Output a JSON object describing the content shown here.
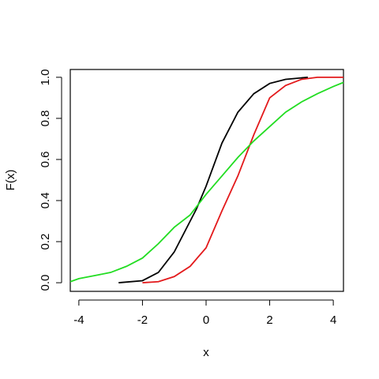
{
  "chart_data": {
    "type": "line",
    "x_label": "x",
    "y_label": "F(x)",
    "xlim": [
      -4.27,
      4.32
    ],
    "ylim": [
      -0.042,
      1.038
    ],
    "xticks": [
      -4,
      -2,
      0,
      2,
      4
    ],
    "yticks": [
      {
        "value": 0,
        "label": "0.0"
      },
      {
        "value": 0.2,
        "label": "0.2"
      },
      {
        "value": 0.4,
        "label": "0.4"
      },
      {
        "value": 0.6,
        "label": "0.6"
      },
      {
        "value": 0.8,
        "label": "0.8"
      },
      {
        "value": 1,
        "label": "1.0"
      }
    ],
    "series": [
      {
        "color": "#000000",
        "x": [
          -2.75,
          -2,
          -1.5,
          -1,
          -0.5,
          -0.3,
          0,
          0.5,
          1,
          1.5,
          2,
          2.5,
          3.2
        ],
        "values": [
          0,
          0.01,
          0.05,
          0.15,
          0.3,
          0.36,
          0.47,
          0.68,
          0.83,
          0.92,
          0.97,
          0.99,
          1
        ]
      },
      {
        "color": "#e31a1c",
        "x": [
          -2,
          -1.5,
          -1,
          -0.5,
          0,
          0.5,
          1,
          1.5,
          2,
          2.5,
          3,
          3.5,
          4.32
        ],
        "values": [
          0,
          0.005,
          0.03,
          0.08,
          0.17,
          0.35,
          0.52,
          0.72,
          0.9,
          0.96,
          0.99,
          1,
          1
        ]
      },
      {
        "color": "#22dd22",
        "x": [
          -4.27,
          -4,
          -3.5,
          -3,
          -2.5,
          -2,
          -1.5,
          -1,
          -0.5,
          0,
          0.5,
          1,
          1.5,
          2,
          2.5,
          3,
          3.5,
          4,
          4.32
        ],
        "values": [
          0.005,
          0.02,
          0.035,
          0.05,
          0.08,
          0.12,
          0.19,
          0.27,
          0.33,
          0.43,
          0.52,
          0.61,
          0.69,
          0.76,
          0.83,
          0.88,
          0.92,
          0.955,
          0.975
        ]
      }
    ]
  }
}
